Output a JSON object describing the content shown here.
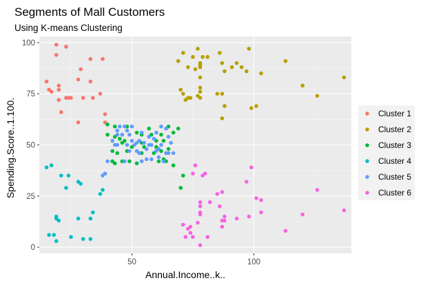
{
  "chart_data": {
    "type": "scatter",
    "title": "Segments of Mall Customers",
    "subtitle": "Using K-means Clustering",
    "xlabel": "Annual.Income..k..",
    "ylabel": "Spending.Score..1.100.",
    "xlim": [
      12,
      140
    ],
    "ylim": [
      -3,
      103
    ],
    "x_ticks": [
      50,
      100
    ],
    "y_ticks": [
      0,
      25,
      50,
      75,
      100
    ],
    "grid": true,
    "legend_position": "right",
    "series": [
      {
        "name": "Cluster 1",
        "color": "#F8766D",
        "points": [
          [
            15,
            81
          ],
          [
            16,
            77
          ],
          [
            17,
            76
          ],
          [
            17,
            40
          ],
          [
            19,
            94
          ],
          [
            19,
            99
          ],
          [
            20,
            77
          ],
          [
            20,
            79
          ],
          [
            20,
            72
          ],
          [
            21,
            66
          ],
          [
            23,
            98
          ],
          [
            23,
            73
          ],
          [
            24,
            73
          ],
          [
            25,
            73
          ],
          [
            28,
            82
          ],
          [
            28,
            61
          ],
          [
            29,
            87
          ],
          [
            30,
            73
          ],
          [
            33,
            92
          ],
          [
            33,
            81
          ],
          [
            34,
            73
          ],
          [
            37,
            75
          ],
          [
            38,
            92
          ],
          [
            39,
            65
          ],
          [
            39,
            61
          ]
        ]
      },
      {
        "name": "Cluster 2",
        "color": "#B79F00",
        "points": [
          [
            69,
            91
          ],
          [
            70,
            77
          ],
          [
            71,
            95
          ],
          [
            71,
            75
          ],
          [
            72,
            72
          ],
          [
            73,
            73
          ],
          [
            73,
            88
          ],
          [
            74,
            73
          ],
          [
            75,
            93
          ],
          [
            76,
            87
          ],
          [
            77,
            97
          ],
          [
            77,
            74
          ],
          [
            78,
            90
          ],
          [
            78,
            88
          ],
          [
            78,
            89
          ],
          [
            78,
            78
          ],
          [
            78,
            76
          ],
          [
            78,
            73
          ],
          [
            78,
            83
          ],
          [
            79,
            93
          ],
          [
            81,
            93
          ],
          [
            85,
            75
          ],
          [
            86,
            95
          ],
          [
            87,
            90
          ],
          [
            87,
            63
          ],
          [
            87,
            75
          ],
          [
            88,
            86
          ],
          [
            88,
            69
          ],
          [
            93,
            90
          ],
          [
            95,
            88
          ],
          [
            97,
            86
          ],
          [
            98,
            97
          ],
          [
            99,
            68
          ],
          [
            101,
            69
          ],
          [
            103,
            85
          ],
          [
            113,
            91
          ],
          [
            120,
            79
          ],
          [
            126,
            74
          ],
          [
            137,
            83
          ],
          [
            91,
            88
          ]
        ]
      },
      {
        "name": "Cluster 3",
        "color": "#00BA38",
        "points": [
          [
            40,
            60
          ],
          [
            40,
            55
          ],
          [
            42,
            47
          ],
          [
            42,
            42
          ],
          [
            43,
            54
          ],
          [
            43,
            41
          ],
          [
            44,
            46
          ],
          [
            46,
            51
          ],
          [
            46,
            42
          ],
          [
            47,
            52
          ],
          [
            48,
            59
          ],
          [
            48,
            47
          ],
          [
            49,
            42
          ],
          [
            50,
            49
          ],
          [
            52,
            56
          ],
          [
            52,
            41
          ],
          [
            54,
            46
          ],
          [
            54,
            55
          ],
          [
            54,
            51
          ],
          [
            57,
            58
          ],
          [
            58,
            55
          ],
          [
            59,
            46
          ],
          [
            60,
            52
          ],
          [
            60,
            49
          ],
          [
            61,
            42
          ],
          [
            62,
            55
          ],
          [
            62,
            47
          ],
          [
            63,
            52
          ],
          [
            63,
            43
          ],
          [
            64,
            42
          ],
          [
            65,
            48
          ],
          [
            65,
            59
          ],
          [
            67,
            56
          ],
          [
            67,
            40
          ],
          [
            69,
            58
          ],
          [
            70,
            29
          ],
          [
            71,
            35
          ],
          [
            43,
            59
          ],
          [
            45,
            53
          ],
          [
            55,
            49
          ]
        ]
      },
      {
        "name": "Cluster 4",
        "color": "#00BFC4",
        "points": [
          [
            15,
            39
          ],
          [
            16,
            6
          ],
          [
            17,
            40
          ],
          [
            18,
            6
          ],
          [
            19,
            3
          ],
          [
            19,
            14
          ],
          [
            19,
            15
          ],
          [
            20,
            13
          ],
          [
            21,
            35
          ],
          [
            23,
            29
          ],
          [
            24,
            35
          ],
          [
            25,
            5
          ],
          [
            28,
            32
          ],
          [
            28,
            14
          ],
          [
            29,
            31
          ],
          [
            30,
            4
          ],
          [
            33,
            4
          ],
          [
            33,
            14
          ],
          [
            34,
            17
          ],
          [
            37,
            26
          ],
          [
            38,
            28
          ]
        ]
      },
      {
        "name": "Cluster 5",
        "color": "#619CFF",
        "points": [
          [
            38,
            35
          ],
          [
            39,
            36
          ],
          [
            40,
            42
          ],
          [
            42,
            52
          ],
          [
            43,
            50
          ],
          [
            44,
            55
          ],
          [
            44,
            50
          ],
          [
            46,
            55
          ],
          [
            47,
            42
          ],
          [
            48,
            50
          ],
          [
            49,
            47
          ],
          [
            50,
            52
          ],
          [
            51,
            50
          ],
          [
            52,
            47
          ],
          [
            53,
            46
          ],
          [
            54,
            42
          ],
          [
            55,
            51
          ],
          [
            56,
            48
          ],
          [
            57,
            50
          ],
          [
            58,
            43
          ],
          [
            59,
            53
          ],
          [
            60,
            47
          ],
          [
            61,
            48
          ],
          [
            62,
            50
          ],
          [
            63,
            42
          ],
          [
            64,
            46
          ],
          [
            65,
            54
          ],
          [
            66,
            51
          ],
          [
            67,
            46
          ],
          [
            62,
            59
          ],
          [
            54,
            56
          ],
          [
            50,
            59
          ],
          [
            48,
            57
          ],
          [
            47,
            59
          ],
          [
            45,
            59
          ],
          [
            56,
            43
          ],
          [
            60,
            56
          ],
          [
            64,
            58
          ],
          [
            65,
            46
          ],
          [
            52,
            51
          ],
          [
            57,
            54
          ],
          [
            49,
            55
          ],
          [
            44,
            57
          ],
          [
            61,
            44
          ],
          [
            58,
            50
          ],
          [
            53,
            52
          ]
        ]
      },
      {
        "name": "Cluster 6",
        "color": "#F564E3",
        "points": [
          [
            71,
            11
          ],
          [
            72,
            5
          ],
          [
            73,
            9
          ],
          [
            74,
            7
          ],
          [
            74,
            10
          ],
          [
            75,
            5
          ],
          [
            75,
            36
          ],
          [
            77,
            12
          ],
          [
            78,
            22
          ],
          [
            78,
            17
          ],
          [
            78,
            20
          ],
          [
            78,
            1
          ],
          [
            78,
            16
          ],
          [
            79,
            35
          ],
          [
            81,
            5
          ],
          [
            85,
            26
          ],
          [
            86,
            20
          ],
          [
            87,
            27
          ],
          [
            87,
            13
          ],
          [
            87,
            10
          ],
          [
            88,
            13
          ],
          [
            88,
            15
          ],
          [
            93,
            14
          ],
          [
            97,
            32
          ],
          [
            98,
            15
          ],
          [
            99,
            39
          ],
          [
            101,
            24
          ],
          [
            103,
            23
          ],
          [
            103,
            17
          ],
          [
            113,
            8
          ],
          [
            120,
            16
          ],
          [
            126,
            28
          ],
          [
            137,
            18
          ],
          [
            82,
            22
          ],
          [
            76,
            40
          ],
          [
            80,
            36
          ]
        ]
      }
    ]
  }
}
